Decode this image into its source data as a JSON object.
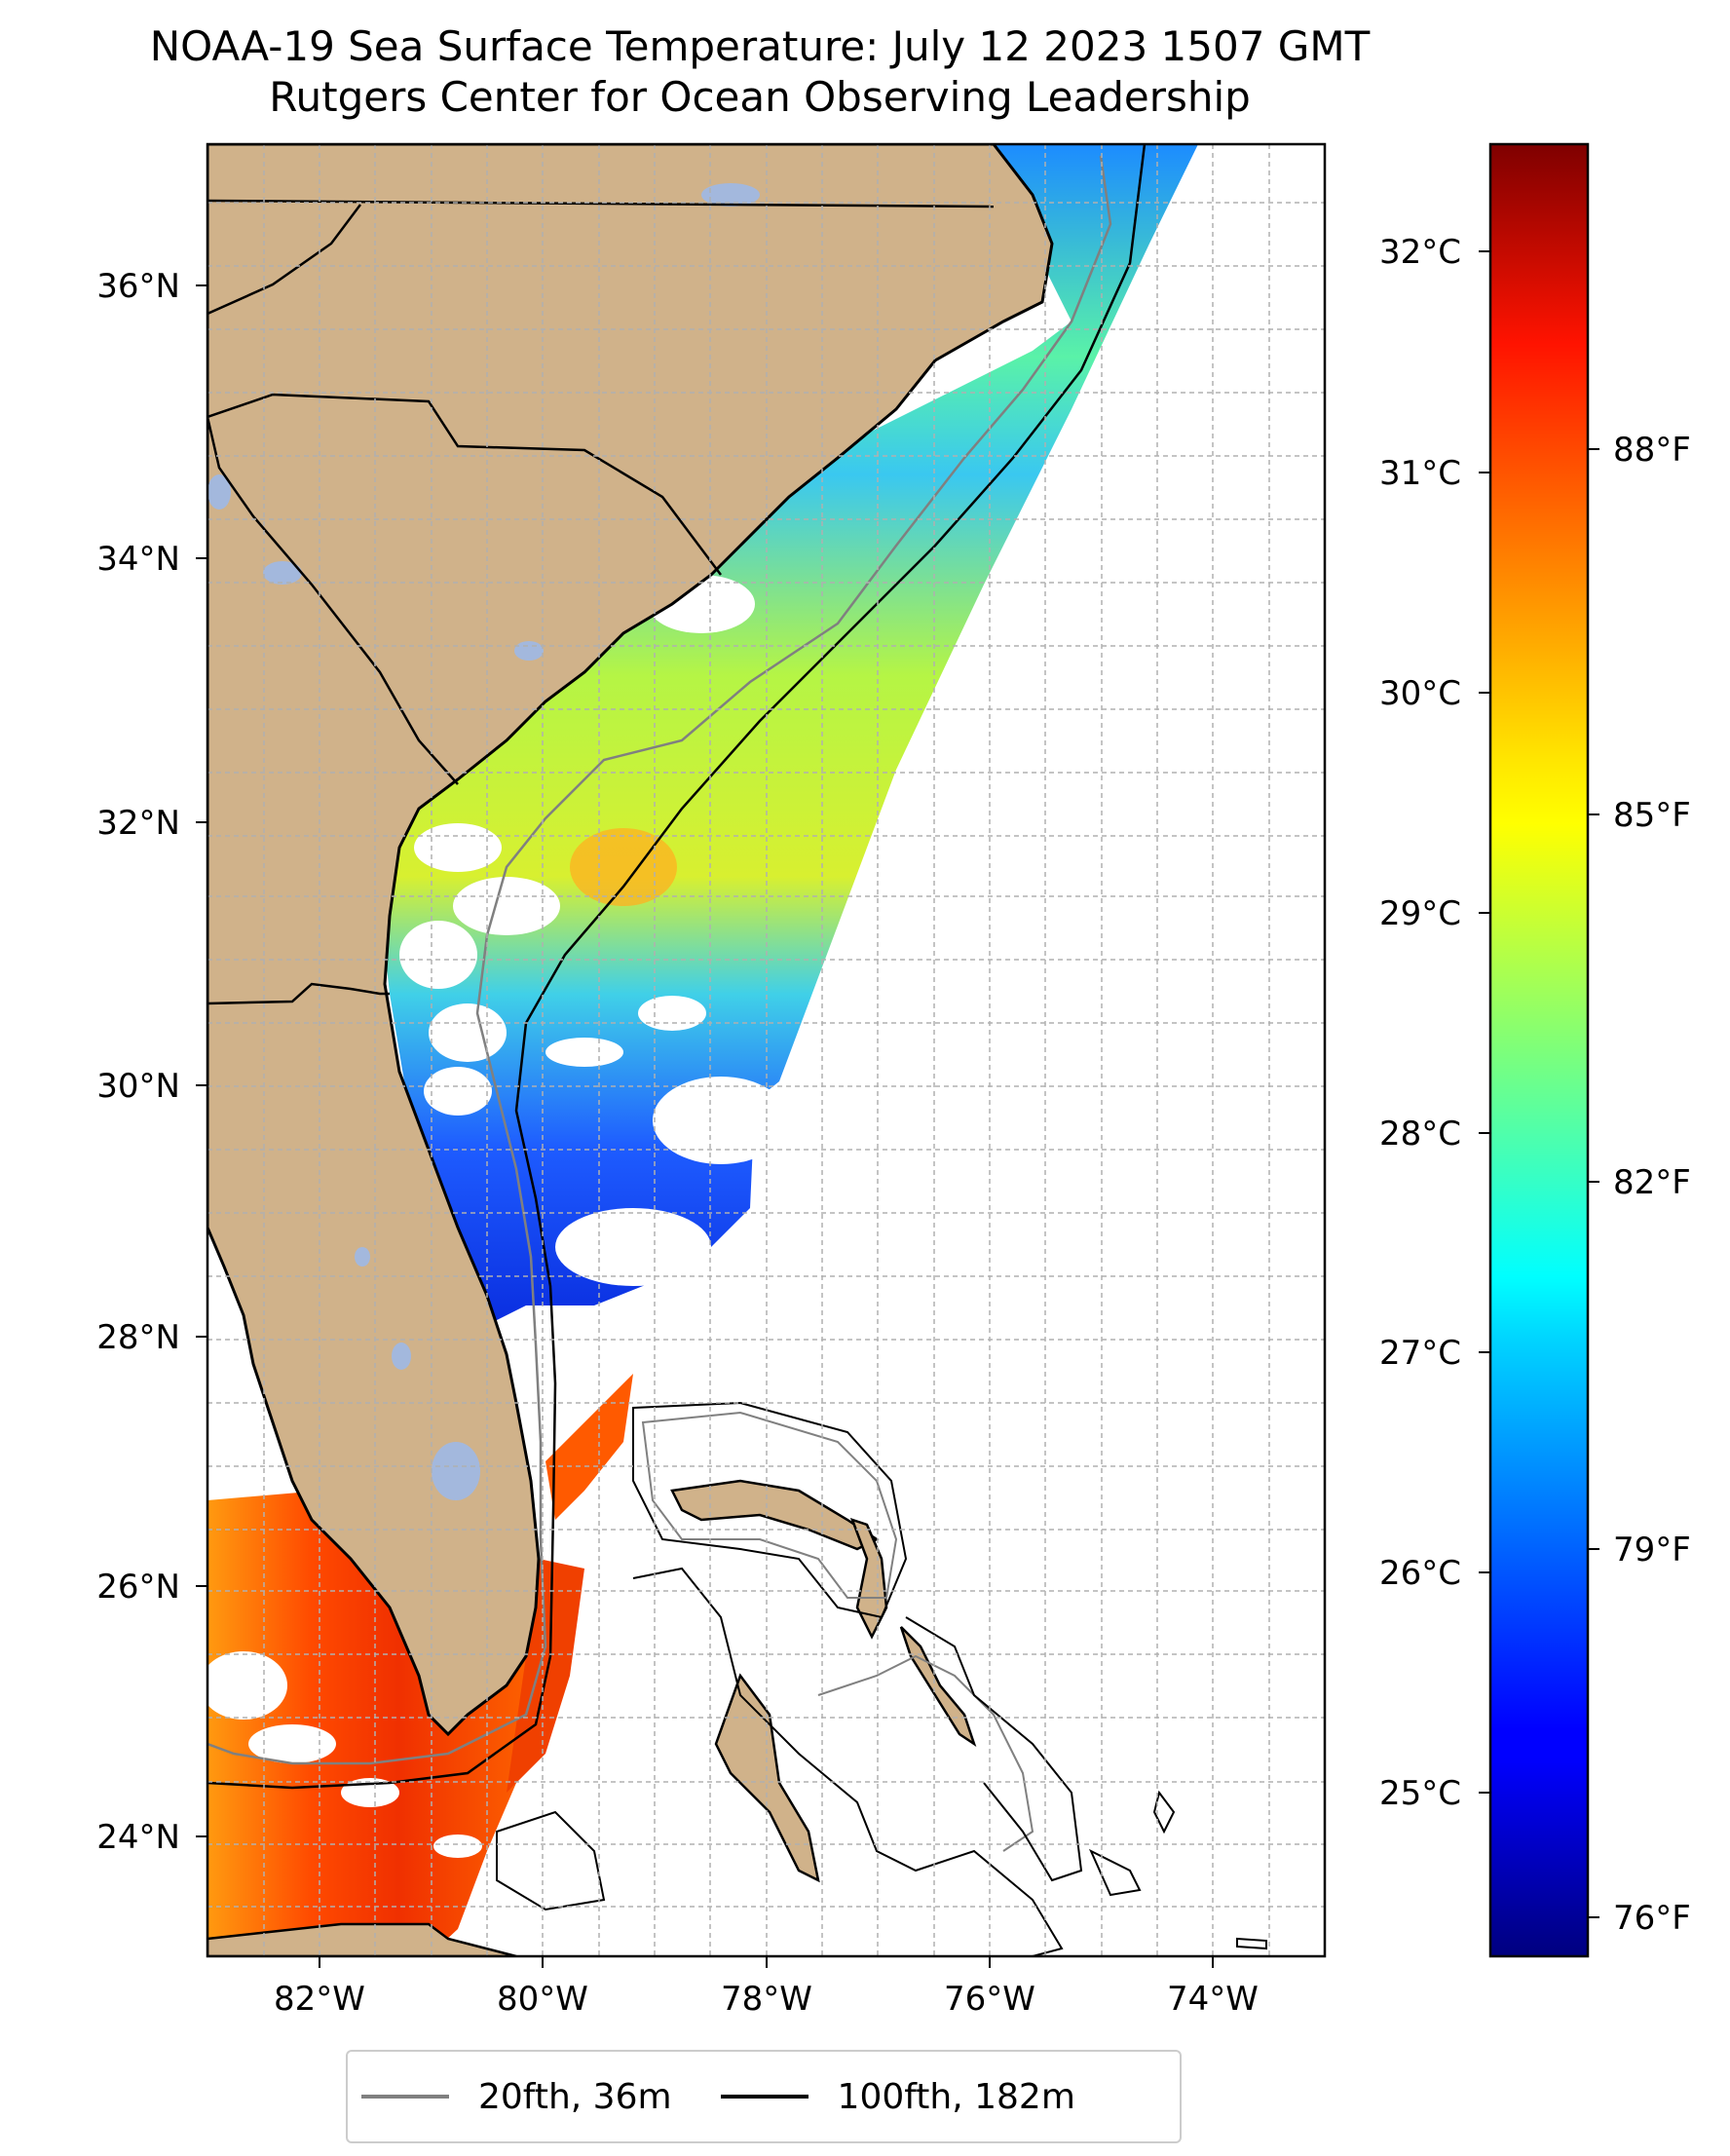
{
  "title": {
    "line1": "NOAA-19 Sea Surface Temperature: July 12 2023 1507 GMT",
    "line2": "Rutgers Center for Ocean Observing Leadership"
  },
  "map": {
    "lon_range": [
      -83,
      -73
    ],
    "lat_range": [
      23.1,
      37
    ],
    "lon_ticks": [
      "82°W",
      "80°W",
      "78°W",
      "76°W",
      "74°W"
    ],
    "lat_ticks": [
      "24°N",
      "26°N",
      "28°N",
      "30°N",
      "32°N",
      "34°N",
      "36°N"
    ],
    "land_color": "#d0b28a",
    "lake_color": "#a3b8dd",
    "grid": true
  },
  "colorbar": {
    "colormap": "jet",
    "celsius_ticks": [
      "25°C",
      "26°C",
      "27°C",
      "28°C",
      "29°C",
      "30°C",
      "31°C",
      "32°C"
    ],
    "fahrenheit_ticks": [
      "76°F",
      "79°F",
      "82°F",
      "85°F",
      "88°F"
    ],
    "range_c": [
      24.4,
      32.5
    ]
  },
  "legend": {
    "items": [
      {
        "label": "20fth, 36m",
        "color": "#808080"
      },
      {
        "label": "100fth, 182m",
        "color": "#000000"
      }
    ]
  }
}
